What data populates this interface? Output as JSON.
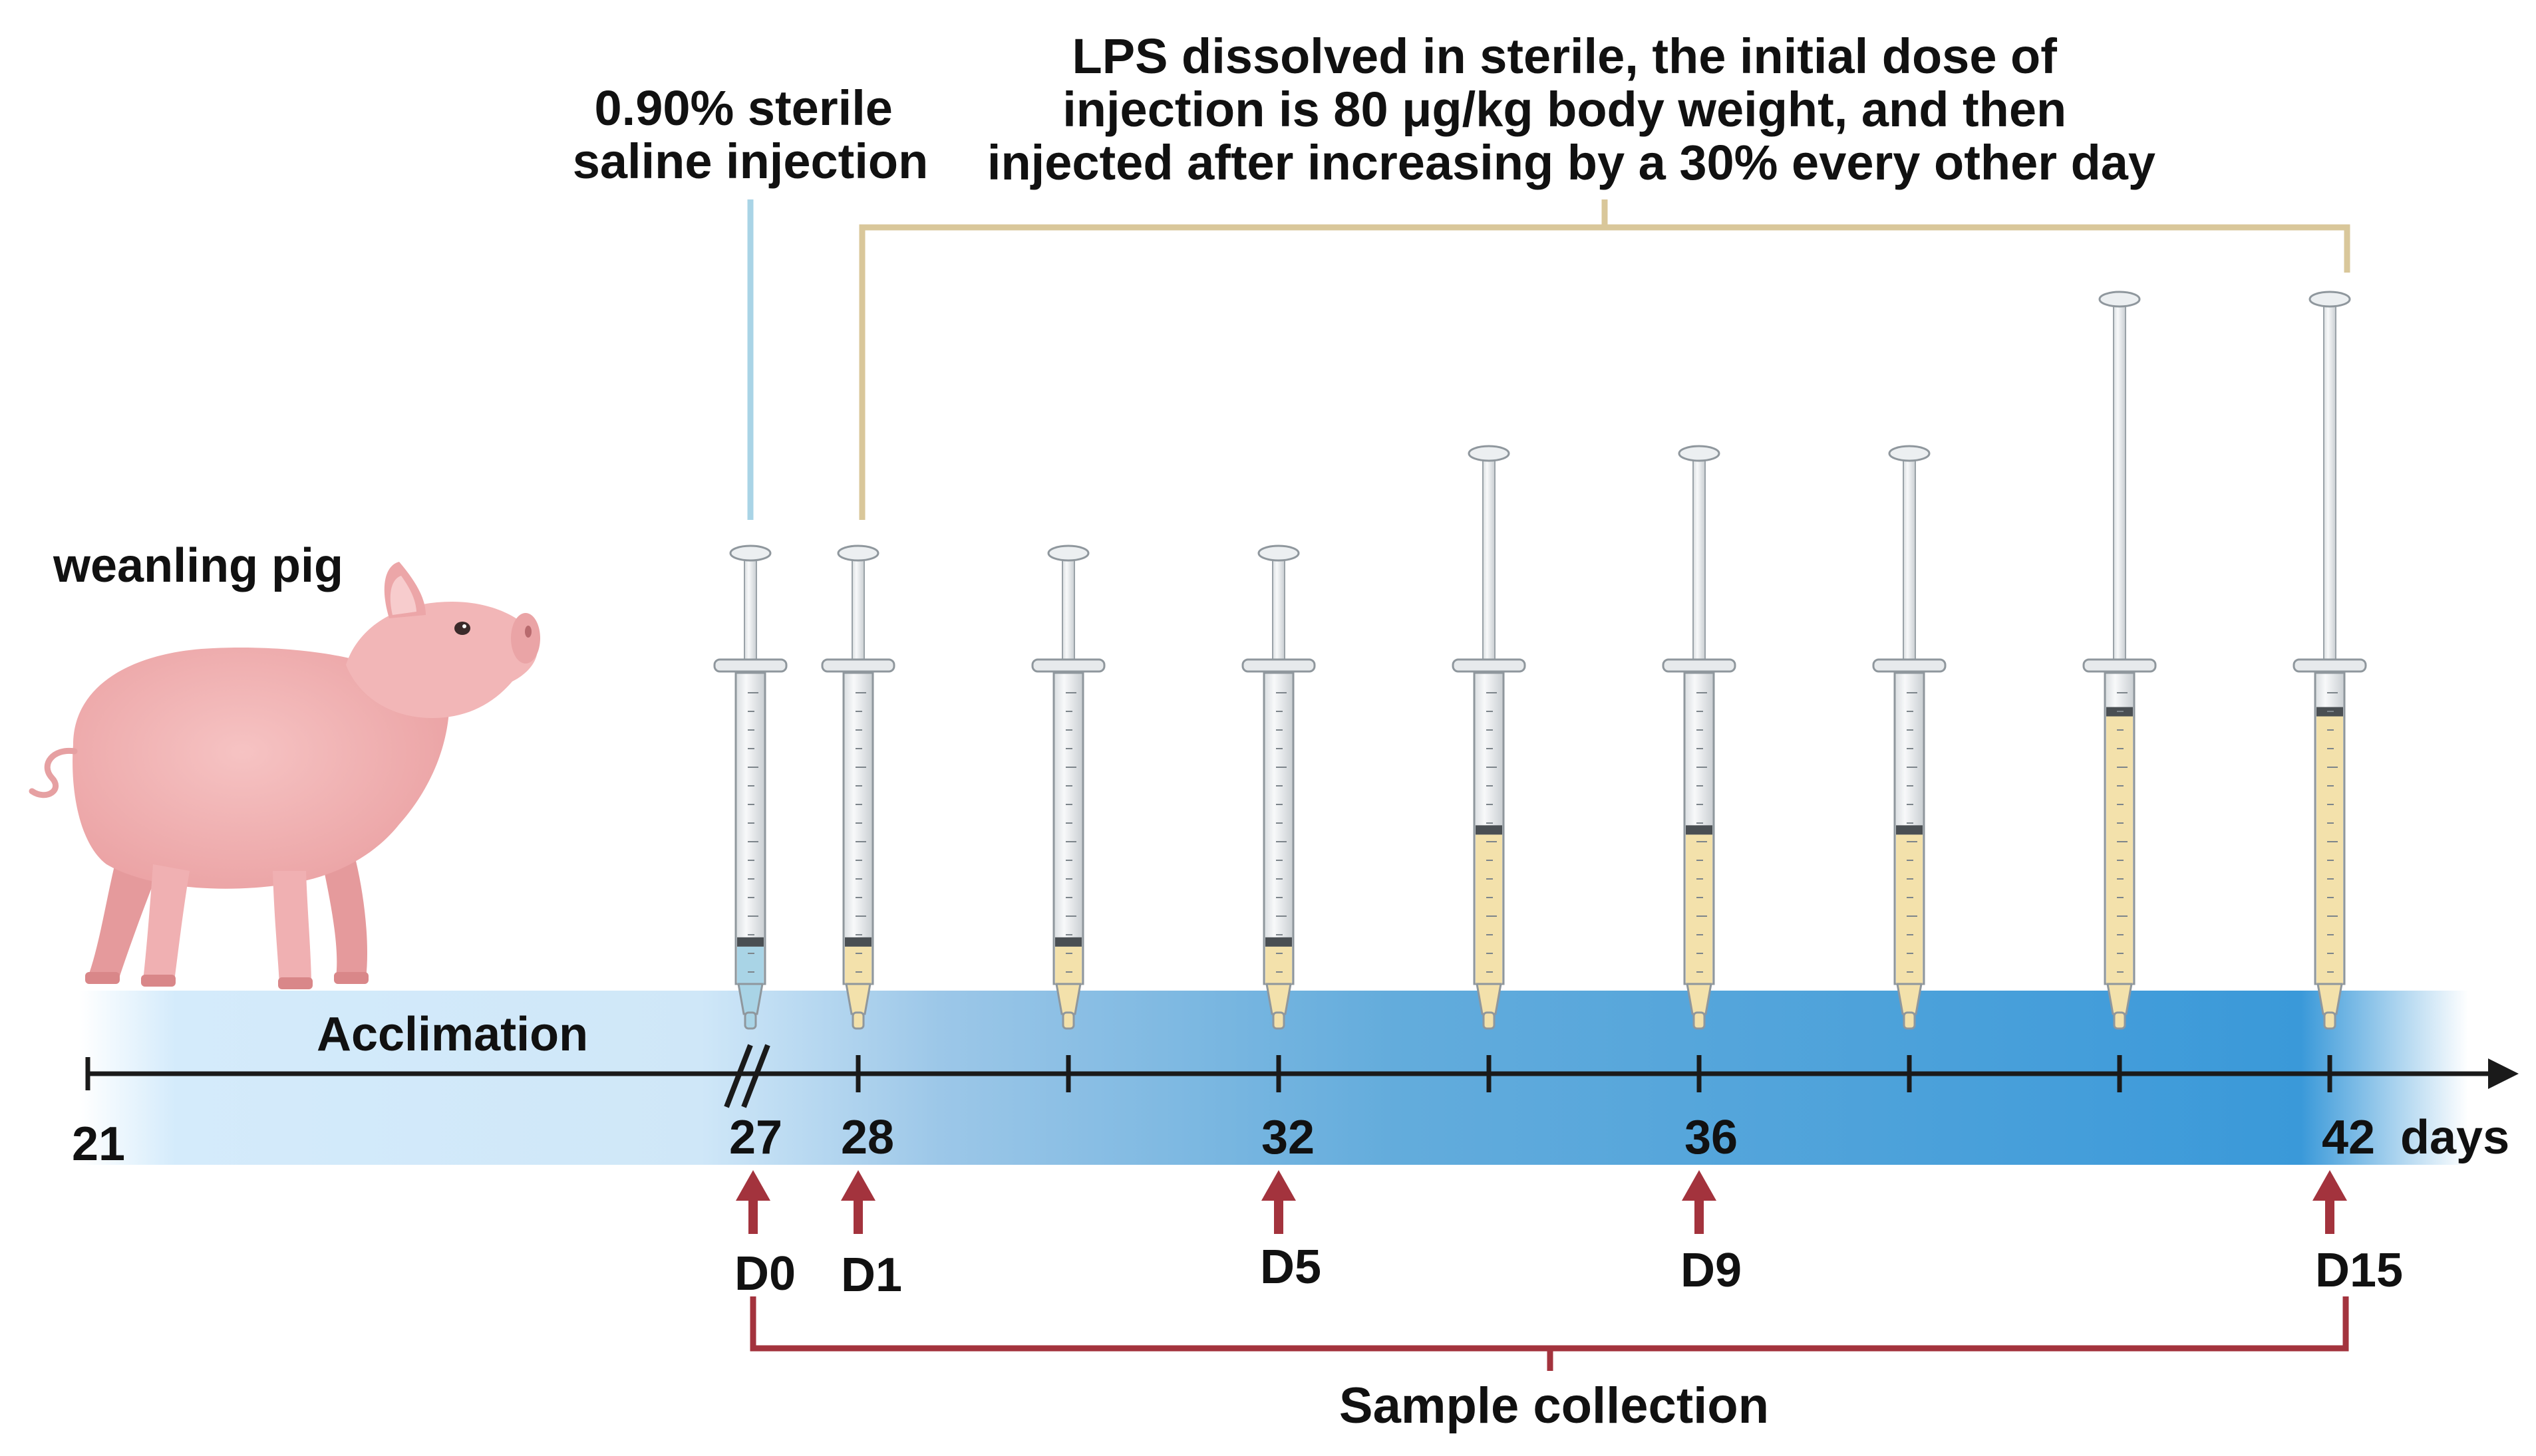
{
  "animal": {
    "label": "weanling pig"
  },
  "phases": {
    "acclimation_label": "Acclimation"
  },
  "saline": {
    "caption_lines": [
      "0.90% sterile",
      "saline injection"
    ],
    "color": "#a9d4e6"
  },
  "lps": {
    "caption_lines": [
      "LPS dissolved in sterile, the initial dose of",
      "injection is 80 μg/kg body weight, and then",
      "injected after increasing by a 30% every other day"
    ],
    "color": "#d9c79a",
    "fluid_color": "#f3e1ab"
  },
  "timeline": {
    "start_label": "21",
    "unit_label": "days",
    "day_labels": [
      "27",
      "28",
      "32",
      "36",
      "42"
    ]
  },
  "injections": [
    {
      "day": 27,
      "agent": "saline",
      "fill_level": 0.12,
      "size": "small"
    },
    {
      "day": 28,
      "agent": "lps",
      "fill_level": 0.12,
      "size": "small"
    },
    {
      "day": 30,
      "agent": "lps",
      "fill_level": 0.12,
      "size": "small"
    },
    {
      "day": 32,
      "agent": "lps",
      "fill_level": 0.12,
      "size": "small"
    },
    {
      "day": 34,
      "agent": "lps",
      "fill_level": 0.48,
      "size": "medium"
    },
    {
      "day": 36,
      "agent": "lps",
      "fill_level": 0.48,
      "size": "medium"
    },
    {
      "day": 38,
      "agent": "lps",
      "fill_level": 0.48,
      "size": "medium"
    },
    {
      "day": 40,
      "agent": "lps",
      "fill_level": 0.86,
      "size": "large"
    },
    {
      "day": 42,
      "agent": "lps",
      "fill_level": 0.86,
      "size": "large"
    }
  ],
  "sampling": {
    "label": "Sample collection",
    "color": "#a3333d",
    "points": [
      "D0",
      "D1",
      "D5",
      "D9",
      "D15"
    ]
  }
}
